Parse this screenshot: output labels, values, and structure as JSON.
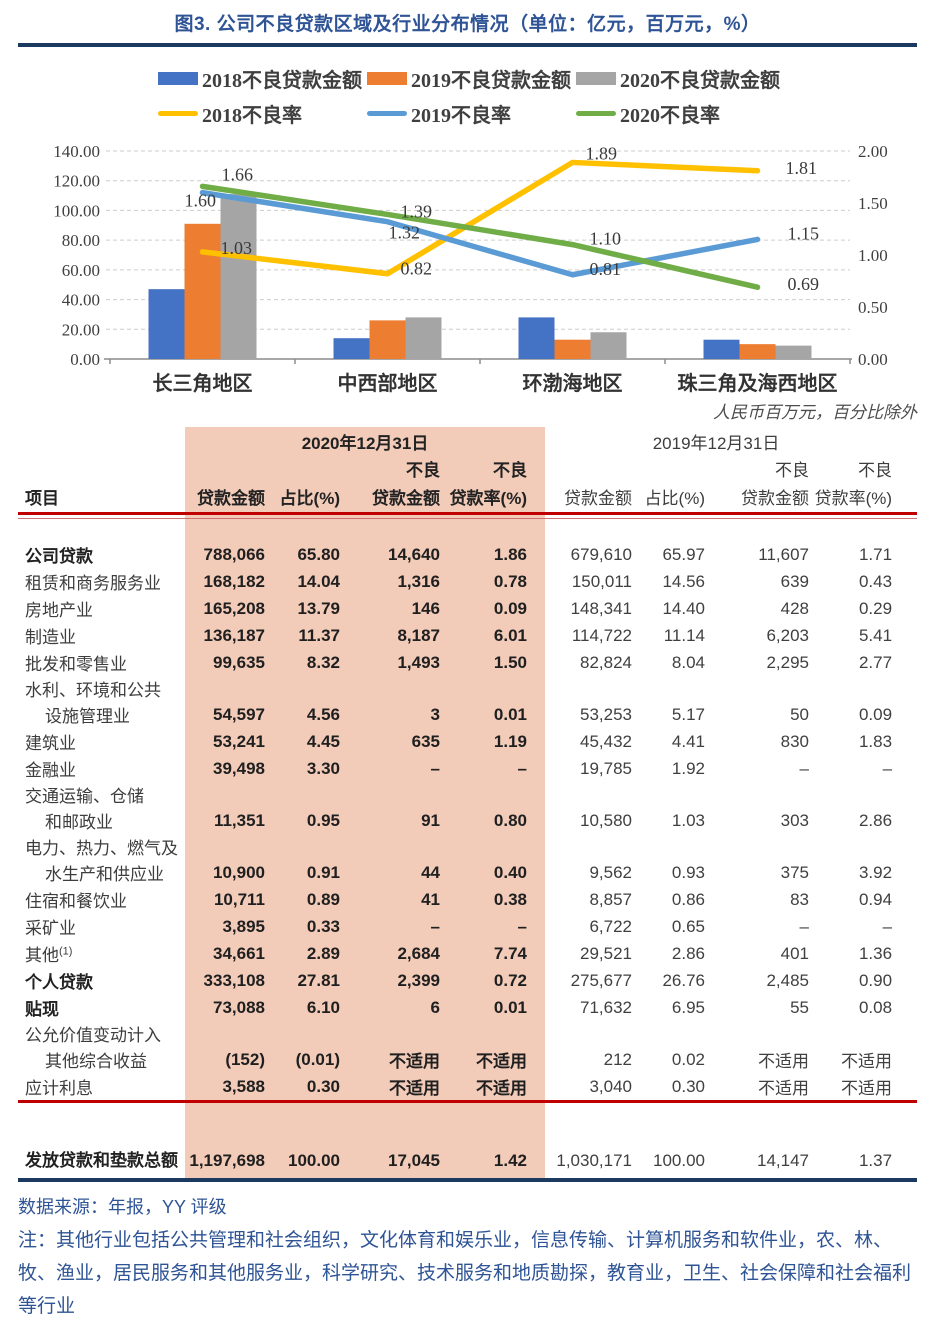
{
  "title": "图3. 公司不良贷款区域及行业分布情况（单位：亿元，百万元，%）",
  "colors": {
    "title_blue": "#2F5496",
    "rule_navy": "#1C3A5F",
    "rule_red": "#C00000",
    "highlight_pink": "#F2CBB9",
    "bar_2018": "#4472C4",
    "bar_2019": "#ED7D31",
    "bar_2020": "#A5A5A5",
    "line_2018": "#FFC000",
    "line_2019": "#5B9BD5",
    "line_2020": "#70AD47"
  },
  "chart_data": {
    "type": "bar+line combo (amounts on left axis, NPL ratios on right axis)",
    "categories": [
      "长三角地区",
      "中西部地区",
      "环渤海地区",
      "珠三角及海西地区"
    ],
    "bar_series": [
      {
        "name": "2018不良贷款金额",
        "color": "#4472C4",
        "values": [
          47,
          14,
          28,
          13
        ]
      },
      {
        "name": "2019不良贷款金额",
        "color": "#ED7D31",
        "values": [
          91,
          26,
          13,
          10
        ]
      },
      {
        "name": "2020不良贷款金额",
        "color": "#A5A5A5",
        "values": [
          111,
          28,
          18,
          9
        ]
      }
    ],
    "line_series": [
      {
        "name": "2018不良率",
        "color": "#FFC000",
        "values": [
          1.03,
          0.82,
          1.89,
          1.81
        ]
      },
      {
        "name": "2019不良率",
        "color": "#5B9BD5",
        "values": [
          1.6,
          1.32,
          0.81,
          1.15
        ]
      },
      {
        "name": "2020不良率",
        "color": "#70AD47",
        "values": [
          1.66,
          1.39,
          1.1,
          0.69
        ]
      }
    ],
    "left_axis": {
      "min": 0,
      "max": 140,
      "step": 20,
      "tick_labels": [
        "0.00",
        "20.00",
        "40.00",
        "60.00",
        "80.00",
        "100.00",
        "120.00",
        "140.00"
      ]
    },
    "right_axis": {
      "min": 0,
      "max": 2,
      "step": 0.5,
      "tick_labels": [
        "0.00",
        "0.50",
        "1.00",
        "1.50",
        "2.00"
      ]
    },
    "grid": "dashed horizontal gridlines",
    "legend_position": "top",
    "point_labels_decimals": 2
  },
  "table": {
    "unit_note": "人民币百万元，百分比除外",
    "col_groups": [
      "2020年12月31日",
      "2019年12月31日"
    ],
    "header": {
      "item": "项目",
      "npl": "不良",
      "cols": [
        "贷款金额",
        "占比(%)",
        "贷款金额",
        "贷款率(%)"
      ]
    },
    "rows": [
      {
        "label_lines": [
          "公司贷款"
        ],
        "bold": true,
        "values": [
          "788,066",
          "65.80",
          "14,640",
          "1.86",
          "679,610",
          "65.97",
          "11,607",
          "1.71"
        ]
      },
      {
        "label_lines": [
          "租赁和商务服务业"
        ],
        "bold": false,
        "values": [
          "168,182",
          "14.04",
          "1,316",
          "0.78",
          "150,011",
          "14.56",
          "639",
          "0.43"
        ]
      },
      {
        "label_lines": [
          "房地产业"
        ],
        "bold": false,
        "values": [
          "165,208",
          "13.79",
          "146",
          "0.09",
          "148,341",
          "14.40",
          "428",
          "0.29"
        ]
      },
      {
        "label_lines": [
          "制造业"
        ],
        "bold": false,
        "values": [
          "136,187",
          "11.37",
          "8,187",
          "6.01",
          "114,722",
          "11.14",
          "6,203",
          "5.41"
        ]
      },
      {
        "label_lines": [
          "批发和零售业"
        ],
        "bold": false,
        "values": [
          "99,635",
          "8.32",
          "1,493",
          "1.50",
          "82,824",
          "8.04",
          "2,295",
          "2.77"
        ]
      },
      {
        "label_lines": [
          "水利、环境和公共",
          "设施管理业"
        ],
        "bold": false,
        "values": [
          "54,597",
          "4.56",
          "3",
          "0.01",
          "53,253",
          "5.17",
          "50",
          "0.09"
        ]
      },
      {
        "label_lines": [
          "建筑业"
        ],
        "bold": false,
        "values": [
          "53,241",
          "4.45",
          "635",
          "1.19",
          "45,432",
          "4.41",
          "830",
          "1.83"
        ]
      },
      {
        "label_lines": [
          "金融业"
        ],
        "bold": false,
        "values": [
          "39,498",
          "3.30",
          "–",
          "–",
          "19,785",
          "1.92",
          "–",
          "–"
        ]
      },
      {
        "label_lines": [
          "交通运输、仓储",
          "和邮政业"
        ],
        "bold": false,
        "values": [
          "11,351",
          "0.95",
          "91",
          "0.80",
          "10,580",
          "1.03",
          "303",
          "2.86"
        ]
      },
      {
        "label_lines": [
          "电力、热力、燃气及",
          "水生产和供应业"
        ],
        "bold": false,
        "values": [
          "10,900",
          "0.91",
          "44",
          "0.40",
          "9,562",
          "0.93",
          "375",
          "3.92"
        ]
      },
      {
        "label_lines": [
          "住宿和餐饮业"
        ],
        "bold": false,
        "values": [
          "10,711",
          "0.89",
          "41",
          "0.38",
          "8,857",
          "0.86",
          "83",
          "0.94"
        ]
      },
      {
        "label_lines": [
          "采矿业"
        ],
        "bold": false,
        "values": [
          "3,895",
          "0.33",
          "–",
          "–",
          "6,722",
          "0.65",
          "–",
          "–"
        ]
      },
      {
        "label_lines": [
          "其他"
        ],
        "sup": "(1)",
        "bold": false,
        "values": [
          "34,661",
          "2.89",
          "2,684",
          "7.74",
          "29,521",
          "2.86",
          "401",
          "1.36"
        ]
      },
      {
        "label_lines": [
          "个人贷款"
        ],
        "bold": true,
        "values": [
          "333,108",
          "27.81",
          "2,399",
          "0.72",
          "275,677",
          "26.76",
          "2,485",
          "0.90"
        ]
      },
      {
        "label_lines": [
          "贴现"
        ],
        "bold": true,
        "values": [
          "73,088",
          "6.10",
          "6",
          "0.01",
          "71,632",
          "6.95",
          "55",
          "0.08"
        ]
      },
      {
        "label_lines": [
          "公允价值变动计入",
          "其他综合收益"
        ],
        "bold": false,
        "values": [
          "(152)",
          "(0.01)",
          "不适用",
          "不适用",
          "212",
          "0.02",
          "不适用",
          "不适用"
        ]
      },
      {
        "label_lines": [
          "应计利息"
        ],
        "bold": false,
        "values": [
          "3,588",
          "0.30",
          "不适用",
          "不适用",
          "3,040",
          "0.30",
          "不适用",
          "不适用"
        ]
      }
    ],
    "total_row": {
      "label": "发放贷款和垫款总额",
      "values": [
        "1,197,698",
        "100.00",
        "17,045",
        "1.42",
        "1,030,171",
        "100.00",
        "14,147",
        "1.37"
      ]
    }
  },
  "footer": {
    "source": "数据来源：年报，YY 评级",
    "note": "注：其他行业包括公共管理和社会组织，文化体育和娱乐业，信息传输、计算机服务和软件业，农、林、牧、渔业，居民服务和其他服务业，科学研究、技术服务和地质勘探，教育业，卫生、社会保障和社会福利等行业"
  }
}
